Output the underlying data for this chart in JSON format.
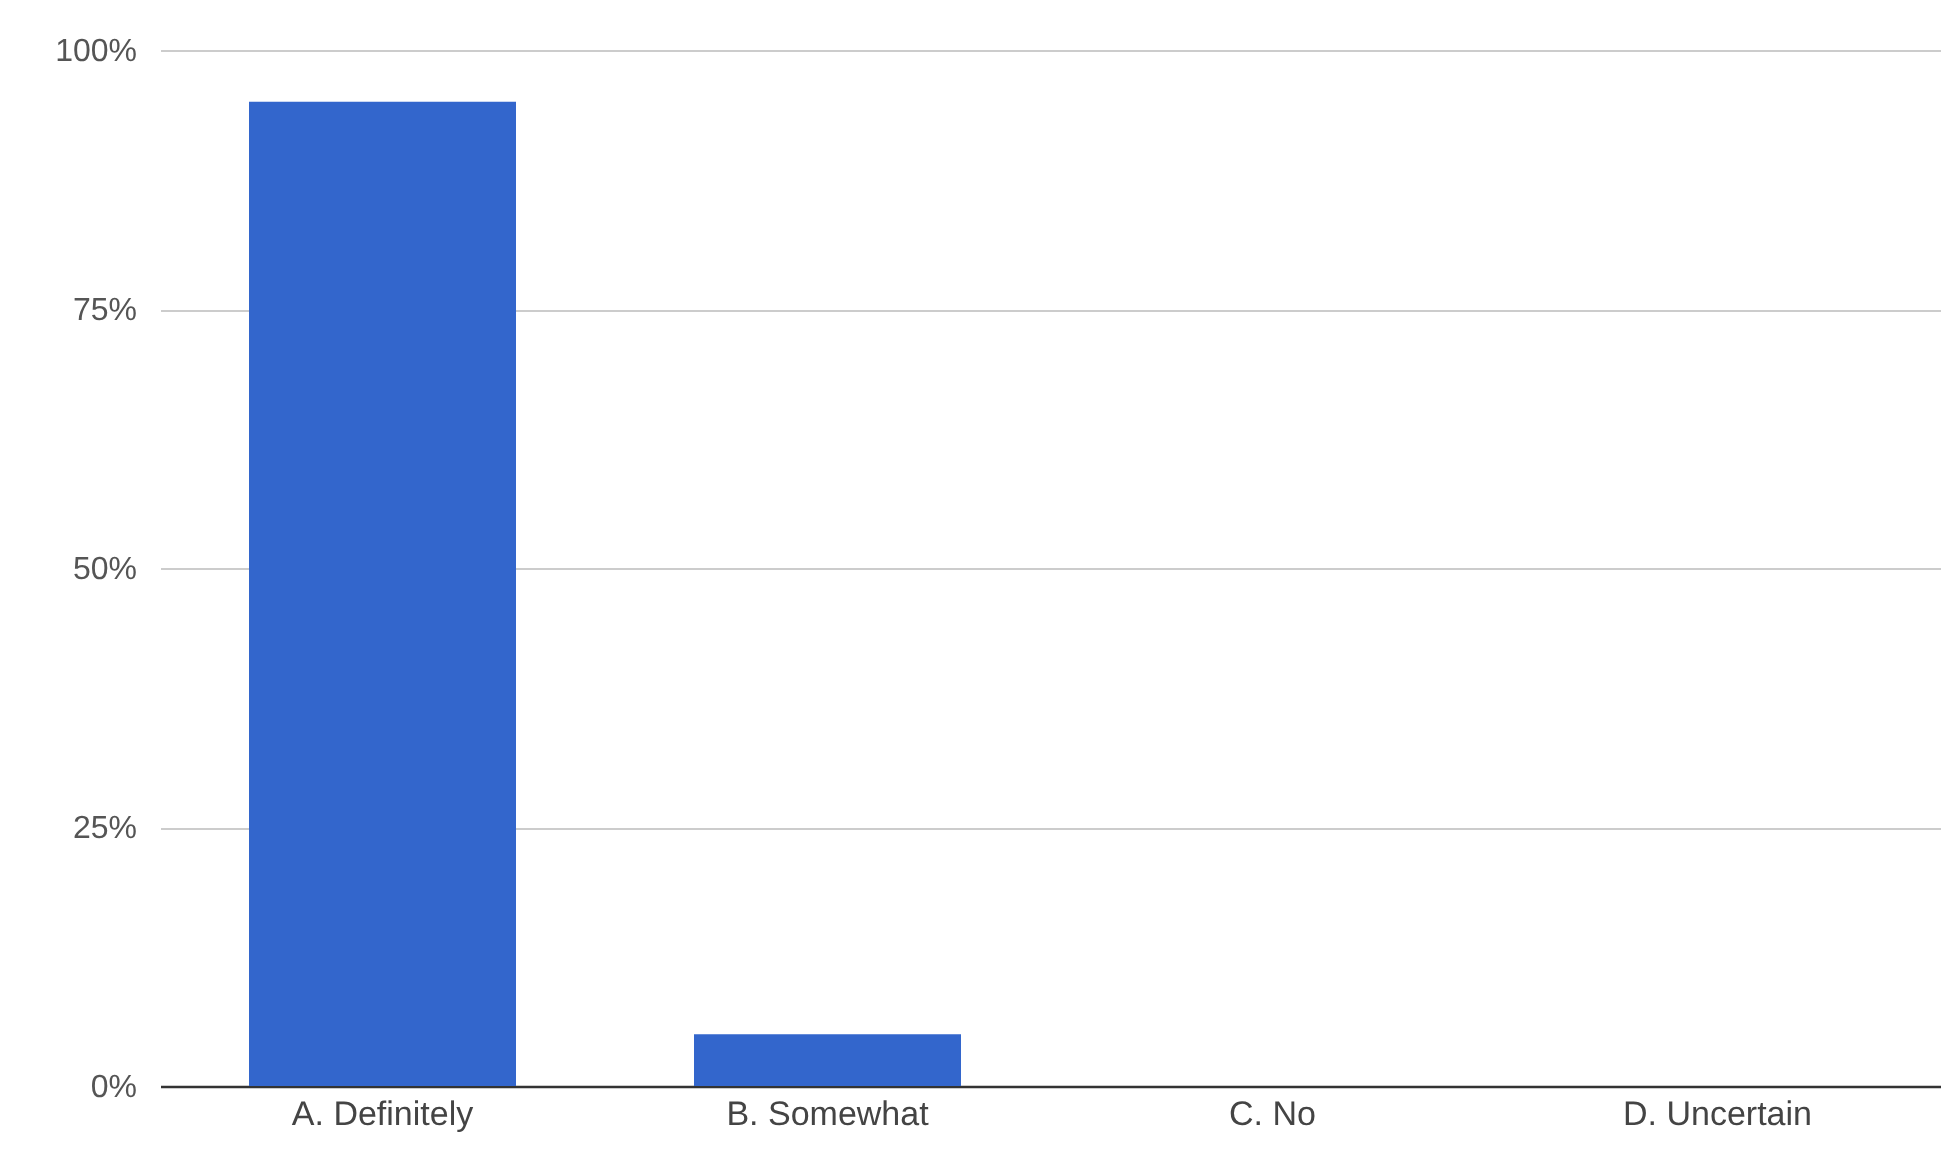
{
  "chart_data": {
    "type": "bar",
    "categories": [
      "A. Definitely",
      "B. Somewhat",
      "C. No",
      "D. Uncertain"
    ],
    "values": [
      95,
      5,
      0,
      0
    ],
    "color": "#3366cc",
    "ylim": [
      0,
      100
    ],
    "yticks": [
      {
        "value": 0,
        "label": "0%"
      },
      {
        "value": 25,
        "label": "25%"
      },
      {
        "value": 50,
        "label": "50%"
      },
      {
        "value": 75,
        "label": "75%"
      },
      {
        "value": 100,
        "label": "100%"
      }
    ],
    "grid": "y"
  }
}
